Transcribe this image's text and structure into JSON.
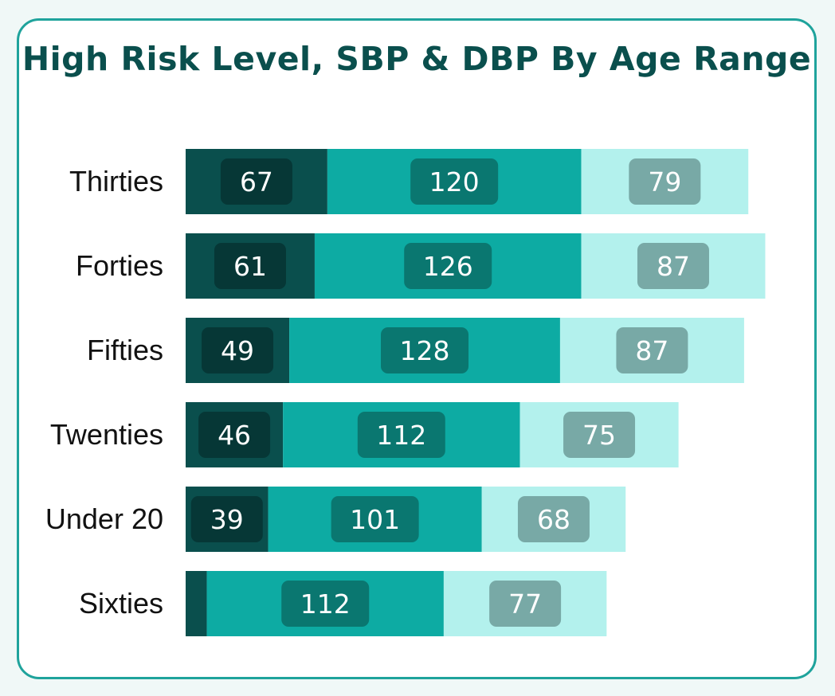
{
  "chart_data": {
    "type": "bar",
    "orientation": "horizontal",
    "stacked": true,
    "title": "High Risk Level, SBP & DBP By Age Range",
    "categories": [
      "Thirties",
      "Forties",
      "Fifties",
      "Twenties",
      "Under 20",
      "Sixties"
    ],
    "series": [
      {
        "values": [
          67,
          61,
          49,
          46,
          39,
          10
        ],
        "show_labels": [
          true,
          true,
          true,
          true,
          true,
          false
        ],
        "color": "#0a4f4d",
        "label_bg": "#063736"
      },
      {
        "values": [
          120,
          126,
          128,
          112,
          101,
          112
        ],
        "show_labels": [
          true,
          true,
          true,
          true,
          true,
          true
        ],
        "color": "#0daba3",
        "label_bg": "#0a7770"
      },
      {
        "values": [
          79,
          87,
          87,
          75,
          68,
          77
        ],
        "show_labels": [
          true,
          true,
          true,
          true,
          true,
          true
        ],
        "color": "#b3f1ed",
        "label_bg": "#78a9a6"
      }
    ],
    "xlim": [
      0,
      275
    ],
    "grid": false,
    "legend": "none"
  }
}
